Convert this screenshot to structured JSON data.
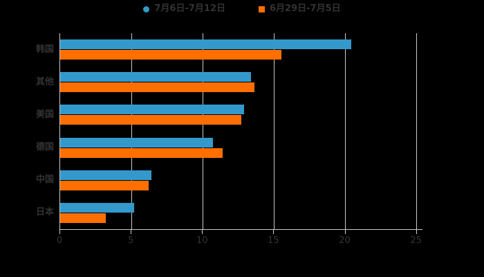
{
  "legend": {
    "items": [
      {
        "label": "7月6日-7月12日",
        "shape": "circle"
      },
      {
        "label": "6月29日-7月5日",
        "shape": "square"
      }
    ]
  },
  "chart_data": {
    "type": "bar",
    "orientation": "horizontal",
    "title": "",
    "categories": [
      "韩国",
      "其他",
      "美国",
      "德国",
      "中国",
      "日本"
    ],
    "series": [
      {
        "name": "7月6日-7月12日",
        "color": "#3399cc",
        "values": [
          20.4,
          13.4,
          12.9,
          10.7,
          6.4,
          5.2
        ]
      },
      {
        "name": "6月29日-7月5日",
        "color": "#ff6f00",
        "values": [
          15.5,
          13.6,
          12.7,
          11.4,
          6.2,
          3.2
        ]
      }
    ],
    "xticks": [
      0,
      5,
      10,
      15,
      20,
      25
    ],
    "xlim": [
      0,
      25.4
    ],
    "grid": true,
    "legend_position": "top",
    "xlabel": "",
    "ylabel": "",
    "colors": {
      "background": "#000000",
      "text": "#333333",
      "axis": "#cccccc",
      "grid": "#cccccc"
    }
  }
}
